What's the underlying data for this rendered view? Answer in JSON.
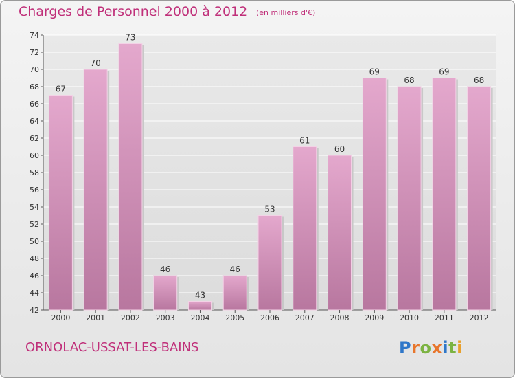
{
  "header": {
    "title": "Charges de Personnel 2000 à 2012",
    "unit_note": "(en milliers d'€)"
  },
  "footer": {
    "commune": "ORNOLAC-USSAT-LES-BAINS",
    "logo": "Proxiti"
  },
  "colors": {
    "title": "#c0307a",
    "bar_top": "#e4a8cd",
    "bar_bottom": "#b8779f",
    "grid": "#ffffff"
  },
  "chart_data": {
    "type": "bar",
    "title": "Charges de Personnel 2000 à 2012",
    "categories": [
      "2000",
      "2001",
      "2002",
      "2003",
      "2004",
      "2005",
      "2006",
      "2007",
      "2008",
      "2009",
      "2010",
      "2011",
      "2012"
    ],
    "values": [
      67,
      70,
      73,
      46,
      43,
      46,
      53,
      61,
      60,
      69,
      68,
      69,
      68
    ],
    "ylim": [
      42,
      74
    ],
    "yticks": [
      42,
      44,
      46,
      48,
      50,
      52,
      54,
      56,
      58,
      60,
      62,
      64,
      66,
      68,
      70,
      72,
      74
    ],
    "grid": true,
    "legend": "none"
  }
}
